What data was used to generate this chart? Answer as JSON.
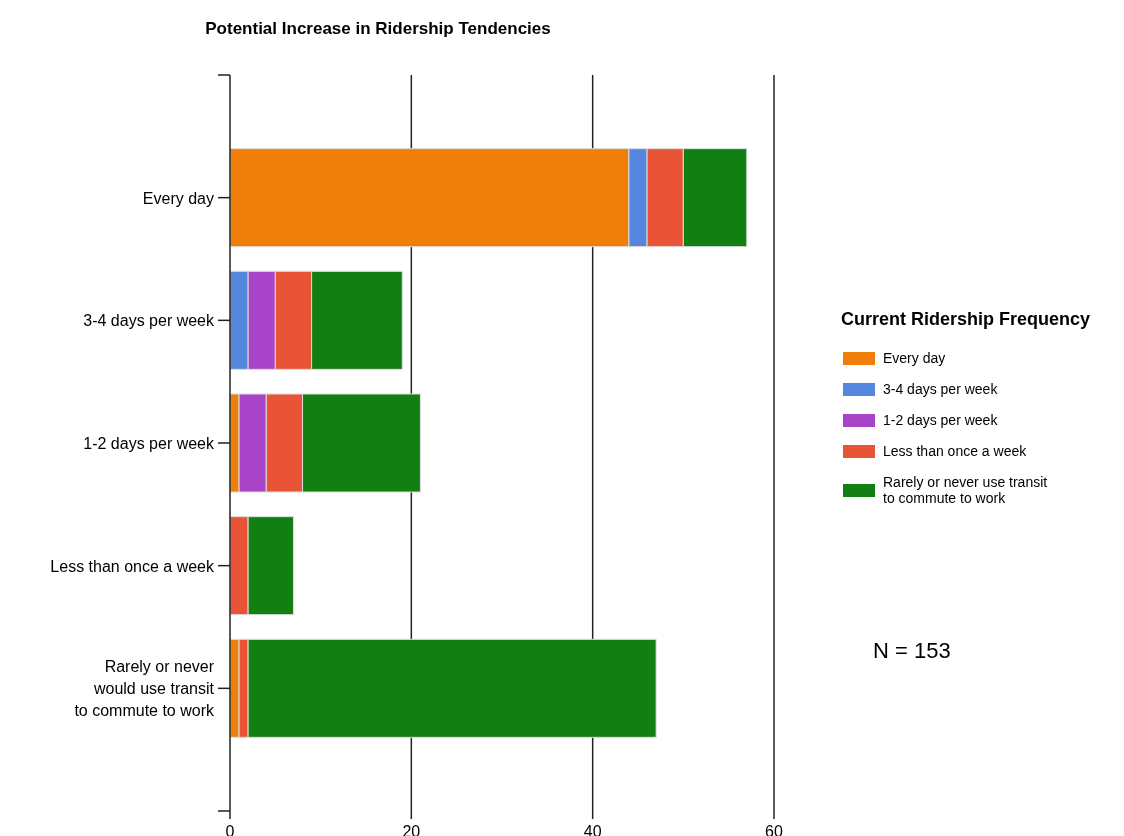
{
  "chart_data": {
    "type": "bar",
    "orientation": "horizontal",
    "stacked": true,
    "title": "Potential Increase in Ridership Tendencies",
    "legend_title": "Current Ridership Frequency",
    "categories": [
      "Every day",
      "3-4 days per week",
      "1-2 days per week",
      "Less than once a week",
      "Rarely or never\nwould use transit\nto commute to work"
    ],
    "series": [
      {
        "name": "Every day",
        "color": "#f07f09",
        "values": [
          44,
          0,
          1,
          0,
          1
        ]
      },
      {
        "name": "3-4 days per week",
        "color": "#5585dd",
        "values": [
          2,
          2,
          0,
          0,
          0
        ]
      },
      {
        "name": "1-2 days per week",
        "color": "#a844c8",
        "values": [
          0,
          3,
          3,
          0,
          0
        ]
      },
      {
        "name": "Less than once a week",
        "color": "#ea5436",
        "values": [
          4,
          4,
          4,
          2,
          1
        ]
      },
      {
        "name": "Rarely or never use transit\nto commute to work",
        "color": "#127f12",
        "values": [
          7,
          10,
          13,
          5,
          45
        ]
      }
    ],
    "xlim": [
      0,
      60
    ],
    "xticks": [
      0,
      20,
      40,
      60
    ],
    "grid": "x",
    "legend": "right",
    "annotations": [
      "N = 153"
    ]
  }
}
